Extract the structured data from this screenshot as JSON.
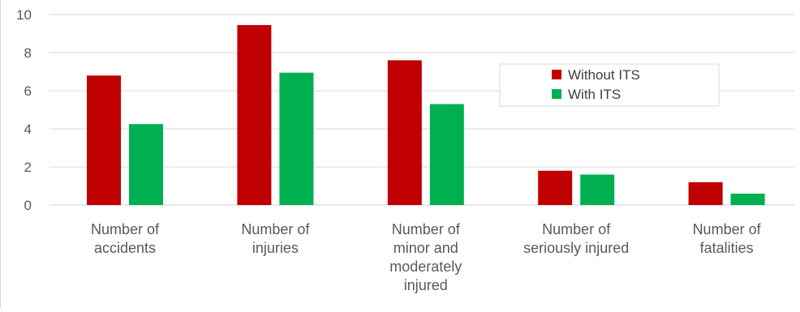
{
  "chart_data": {
    "type": "bar",
    "categories": [
      [
        "Number of",
        "accidents"
      ],
      [
        "Number of",
        "injuries"
      ],
      [
        "Number of",
        "minor and",
        "moderately",
        "injured"
      ],
      [
        "Number of",
        "seriously injured"
      ],
      [
        "Number of",
        "fatalities"
      ]
    ],
    "series": [
      {
        "name": "Without ITS",
        "color": "#c00000",
        "values": [
          6.8,
          9.45,
          7.6,
          1.8,
          1.2
        ]
      },
      {
        "name": "With ITS",
        "color": "#00b050",
        "values": [
          4.25,
          6.95,
          5.3,
          1.6,
          0.6
        ]
      }
    ],
    "ylim": [
      0,
      10
    ],
    "yticks": [
      0,
      2,
      4,
      6,
      8,
      10
    ],
    "ytick_labels": [
      "0",
      "2",
      "4",
      "6",
      "8",
      "10"
    ],
    "grid": true,
    "legend_position": "right",
    "title": "",
    "xlabel": "",
    "ylabel": ""
  }
}
